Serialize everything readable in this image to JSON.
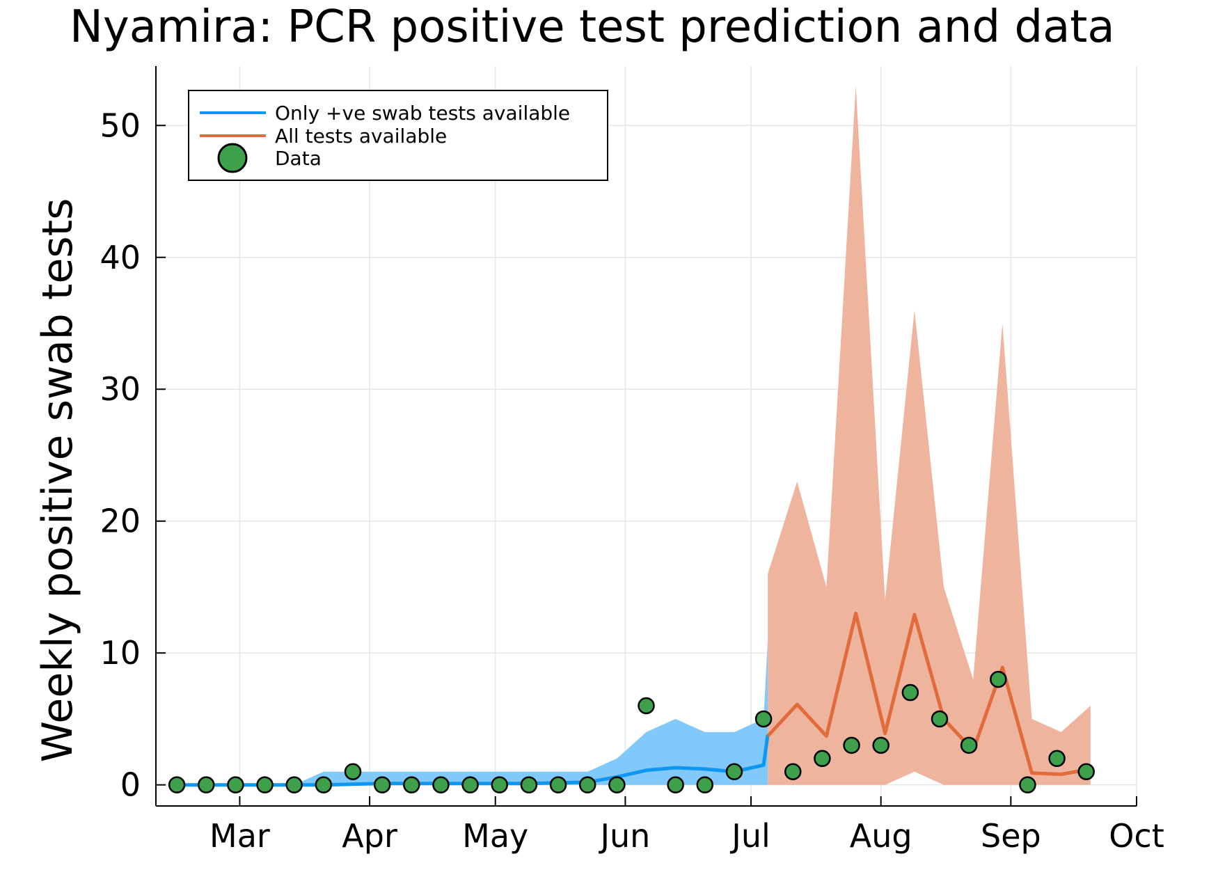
{
  "chart_data": {
    "type": "line",
    "title": "Nyamira: PCR positive test prediction and data",
    "xlabel": "",
    "ylabel": "Weekly positive swab tests",
    "ylim": [
      -1.6,
      54.5
    ],
    "yticks": [
      0,
      10,
      20,
      30,
      40,
      50
    ],
    "xticks": [
      {
        "label": "Mar",
        "date": "2020-03-01"
      },
      {
        "label": "Apr",
        "date": "2020-04-01"
      },
      {
        "label": "May",
        "date": "2020-05-01"
      },
      {
        "label": "Jun",
        "date": "2020-06-01"
      },
      {
        "label": "Jul",
        "date": "2020-07-01"
      },
      {
        "label": "Aug",
        "date": "2020-08-01"
      },
      {
        "label": "Sep",
        "date": "2020-09-01"
      },
      {
        "label": "Oct",
        "date": "2020-10-01"
      }
    ],
    "xlim": [
      "2020-02-10",
      "2020-10-01"
    ],
    "grid": true,
    "legend_position": "top-left",
    "colors": {
      "blue": "#0e97f0",
      "blue_band": "#80c9fa",
      "orange": "#e26b3c",
      "orange_band": "#efb49e",
      "data_fill": "#3ea04a"
    },
    "series": [
      {
        "name": "Only +ve swab tests available",
        "x": [
          "2020-02-15",
          "2020-02-22",
          "2020-02-29",
          "2020-03-07",
          "2020-03-14",
          "2020-03-21",
          "2020-03-28",
          "2020-04-04",
          "2020-04-11",
          "2020-04-18",
          "2020-04-25",
          "2020-05-02",
          "2020-05-09",
          "2020-05-16",
          "2020-05-23",
          "2020-05-30",
          "2020-06-06",
          "2020-06-13",
          "2020-06-20",
          "2020-06-27",
          "2020-07-04"
        ],
        "y": [
          0,
          0,
          0,
          0,
          0,
          0,
          0.05,
          0.1,
          0.1,
          0.1,
          0.1,
          0.1,
          0.1,
          0.15,
          0.2,
          0.6,
          1.1,
          1.3,
          1.2,
          1.0,
          1.5
        ],
        "y_end": 3.8,
        "lower": [
          0,
          0,
          0,
          0,
          0,
          0,
          0,
          0,
          0,
          0,
          0,
          0,
          0,
          0,
          0,
          0,
          0,
          0,
          0,
          0,
          0
        ],
        "upper": [
          0,
          0,
          0,
          0,
          0,
          1,
          1,
          1,
          1,
          1,
          1,
          1,
          1,
          1,
          1,
          2,
          4,
          5,
          4,
          4,
          5
        ],
        "upper_end": 11
      },
      {
        "name": "All tests available",
        "x": [
          "2020-07-05",
          "2020-07-12",
          "2020-07-19",
          "2020-07-26",
          "2020-08-02",
          "2020-08-09",
          "2020-08-16",
          "2020-08-23",
          "2020-08-30",
          "2020-09-06",
          "2020-09-13",
          "2020-09-20"
        ],
        "y": [
          3.7,
          6.1,
          3.7,
          13.0,
          3.9,
          12.9,
          5.0,
          2.6,
          8.9,
          0.9,
          0.8,
          1.2
        ],
        "lower": [
          0,
          0,
          0,
          0,
          0,
          1,
          0,
          0,
          0,
          0,
          0,
          0
        ],
        "upper": [
          16,
          23,
          15,
          53,
          14,
          36,
          15,
          8,
          35,
          5,
          4,
          6
        ]
      },
      {
        "name": "Data",
        "x": [
          "2020-02-15",
          "2020-02-22",
          "2020-02-29",
          "2020-03-07",
          "2020-03-14",
          "2020-03-21",
          "2020-03-28",
          "2020-04-04",
          "2020-04-11",
          "2020-04-18",
          "2020-04-25",
          "2020-05-02",
          "2020-05-09",
          "2020-05-16",
          "2020-05-23",
          "2020-05-30",
          "2020-06-06",
          "2020-06-13",
          "2020-06-20",
          "2020-06-27",
          "2020-07-04",
          "2020-07-11",
          "2020-07-18",
          "2020-07-25",
          "2020-08-01",
          "2020-08-08",
          "2020-08-15",
          "2020-08-22",
          "2020-08-29",
          "2020-09-05",
          "2020-09-12",
          "2020-09-19"
        ],
        "y": [
          0,
          0,
          0,
          0,
          0,
          0,
          1,
          0,
          0,
          0,
          0,
          0,
          0,
          0,
          0,
          0,
          6,
          0,
          0,
          1,
          5,
          1,
          2,
          3,
          3,
          7,
          5,
          3,
          8,
          0,
          2,
          1
        ]
      }
    ]
  }
}
